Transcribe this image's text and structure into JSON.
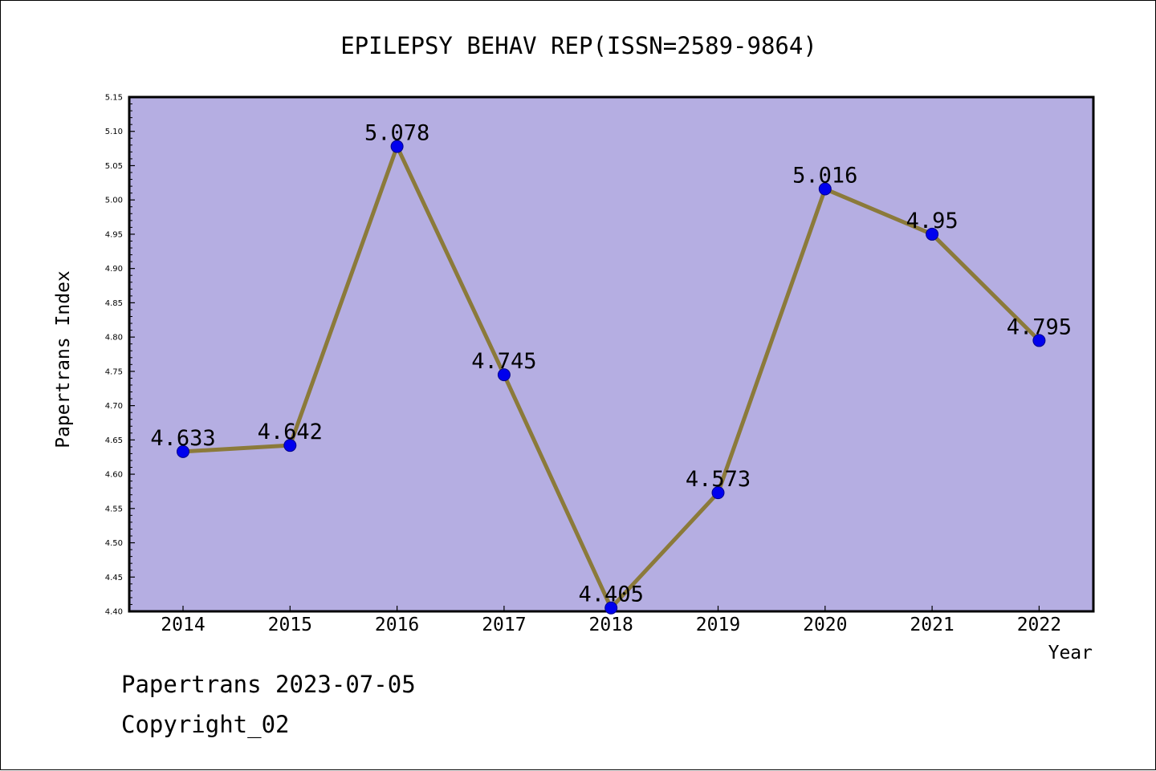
{
  "chart_data": {
    "type": "line",
    "title": "EPILEPSY BEHAV REP(ISSN=2589-9864)",
    "xlabel": "Year",
    "ylabel": "Papertrans Index",
    "categories": [
      "2014",
      "2015",
      "2016",
      "2017",
      "2018",
      "2019",
      "2020",
      "2021",
      "2022"
    ],
    "values": [
      4.633,
      4.642,
      5.078,
      4.745,
      4.405,
      4.573,
      5.016,
      4.95,
      4.795
    ],
    "data_labels": [
      "4.633",
      "4.642",
      "5.078",
      "4.745",
      "4.405",
      "4.573",
      "5.016",
      "4.95",
      "4.795"
    ],
    "ylim": [
      4.4,
      5.15
    ],
    "yticks": [
      "4.40",
      "4.45",
      "4.50",
      "4.55",
      "4.60",
      "4.65",
      "4.70",
      "4.75",
      "4.80",
      "4.85",
      "4.90",
      "4.95",
      "5.00",
      "5.05",
      "5.10",
      "5.15"
    ],
    "grid": false,
    "colors": {
      "plot_background": "#b5aee2",
      "line": "#8b7a3a",
      "marker": "#0000ee"
    }
  },
  "footer": {
    "line1": "Papertrans 2023-07-05",
    "line2": "Copyright_02"
  }
}
